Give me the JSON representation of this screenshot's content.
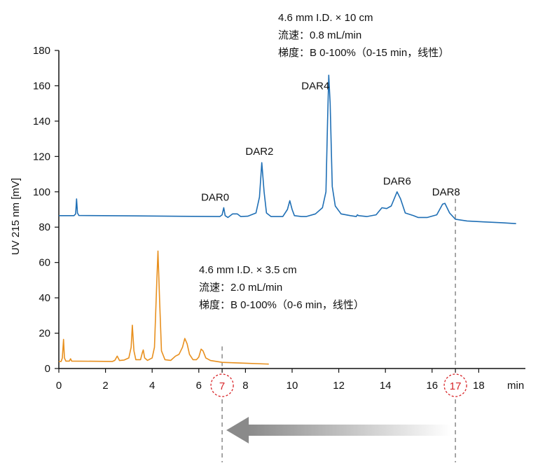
{
  "chart_data": {
    "type": "line",
    "xlabel": "min",
    "ylabel": "UV 215 nm [mV]",
    "xlim": [
      0,
      20
    ],
    "ylim": [
      0,
      180
    ],
    "x_ticks": [
      0,
      2,
      4,
      6,
      8,
      10,
      12,
      14,
      16,
      18
    ],
    "y_ticks": [
      0,
      20,
      40,
      60,
      80,
      100,
      120,
      140,
      160,
      180
    ],
    "highlighted_ticks": [
      {
        "value": 7,
        "label": "7"
      },
      {
        "value": 17,
        "label": "17"
      }
    ],
    "series": [
      {
        "color": "#1f6fb5",
        "annotation": [
          "4.6 mm I.D. × 10 cm",
          "流速：0.8 mL/min",
          "梯度：B 0-100%（0-15 min，线性）"
        ],
        "points": [
          [
            0,
            86.5
          ],
          [
            0.65,
            86.5
          ],
          [
            0.72,
            87.5
          ],
          [
            0.76,
            96
          ],
          [
            0.8,
            88
          ],
          [
            0.86,
            86.6
          ],
          [
            3,
            86.4
          ],
          [
            6.9,
            86
          ],
          [
            7.0,
            87
          ],
          [
            7.07,
            91
          ],
          [
            7.13,
            86.5
          ],
          [
            7.25,
            85.5
          ],
          [
            7.45,
            87.5
          ],
          [
            7.65,
            87.5
          ],
          [
            7.8,
            86
          ],
          [
            8.1,
            86.2
          ],
          [
            8.45,
            88
          ],
          [
            8.6,
            97
          ],
          [
            8.7,
            116.5
          ],
          [
            8.8,
            100
          ],
          [
            8.9,
            88
          ],
          [
            9.1,
            86
          ],
          [
            9.6,
            86
          ],
          [
            9.8,
            90
          ],
          [
            9.9,
            95
          ],
          [
            10.0,
            90
          ],
          [
            10.1,
            86.5
          ],
          [
            10.4,
            86
          ],
          [
            10.6,
            86
          ],
          [
            11.0,
            87.5
          ],
          [
            11.3,
            91
          ],
          [
            11.45,
            100
          ],
          [
            11.52,
            140
          ],
          [
            11.57,
            166
          ],
          [
            11.63,
            150
          ],
          [
            11.72,
            103
          ],
          [
            11.85,
            92
          ],
          [
            12.1,
            87.5
          ],
          [
            12.5,
            86.5
          ],
          [
            12.75,
            86
          ],
          [
            12.8,
            87
          ],
          [
            12.85,
            86.5
          ],
          [
            13.2,
            86
          ],
          [
            13.6,
            87
          ],
          [
            13.85,
            91
          ],
          [
            14.05,
            90.5
          ],
          [
            14.25,
            92
          ],
          [
            14.5,
            100
          ],
          [
            14.65,
            96
          ],
          [
            14.85,
            88
          ],
          [
            15.2,
            86.5
          ],
          [
            15.4,
            85.5
          ],
          [
            15.8,
            85.5
          ],
          [
            16.2,
            87
          ],
          [
            16.45,
            93
          ],
          [
            16.55,
            93.5
          ],
          [
            16.75,
            88
          ],
          [
            17.0,
            84.5
          ],
          [
            17.5,
            83.5
          ],
          [
            18.2,
            83
          ],
          [
            19.0,
            82.5
          ],
          [
            19.6,
            82
          ]
        ]
      },
      {
        "color": "#e8901f",
        "annotation": [
          "4.6 mm I.D. × 3.5 cm",
          "流速：2.0 mL/min",
          "梯度：B 0-100%（0-6 min，线性）"
        ],
        "points": [
          [
            0,
            4
          ],
          [
            0.1,
            4
          ],
          [
            0.15,
            6
          ],
          [
            0.2,
            16.5
          ],
          [
            0.24,
            6
          ],
          [
            0.3,
            4.2
          ],
          [
            0.45,
            4.2
          ],
          [
            0.5,
            5.5
          ],
          [
            0.55,
            4.2
          ],
          [
            2.3,
            4
          ],
          [
            2.4,
            4.6
          ],
          [
            2.5,
            7
          ],
          [
            2.6,
            4.5
          ],
          [
            2.8,
            4.8
          ],
          [
            3.0,
            6
          ],
          [
            3.1,
            12
          ],
          [
            3.15,
            24.5
          ],
          [
            3.22,
            10
          ],
          [
            3.3,
            5
          ],
          [
            3.5,
            5
          ],
          [
            3.58,
            9
          ],
          [
            3.62,
            10.5
          ],
          [
            3.68,
            6
          ],
          [
            3.8,
            4.6
          ],
          [
            4.0,
            6
          ],
          [
            4.1,
            12
          ],
          [
            4.2,
            50
          ],
          [
            4.25,
            66.5
          ],
          [
            4.32,
            38
          ],
          [
            4.4,
            10
          ],
          [
            4.55,
            5
          ],
          [
            4.8,
            4.6
          ],
          [
            5.0,
            7
          ],
          [
            5.15,
            8
          ],
          [
            5.3,
            12
          ],
          [
            5.4,
            17
          ],
          [
            5.5,
            14
          ],
          [
            5.6,
            8
          ],
          [
            5.75,
            5
          ],
          [
            5.9,
            5
          ],
          [
            6.0,
            6.5
          ],
          [
            6.1,
            11
          ],
          [
            6.18,
            10
          ],
          [
            6.3,
            6
          ],
          [
            6.5,
            4.5
          ],
          [
            7.0,
            3.5
          ],
          [
            8.0,
            3
          ],
          [
            9.0,
            2.5
          ]
        ]
      }
    ],
    "peak_labels": [
      {
        "text": "DAR0",
        "x": 6.7,
        "y": 95
      },
      {
        "text": "DAR2",
        "x": 8.6,
        "y": 121
      },
      {
        "text": "DAR4",
        "x": 11.0,
        "y": 158
      },
      {
        "text": "DAR6",
        "x": 14.5,
        "y": 104
      },
      {
        "text": "DAR8",
        "x": 16.6,
        "y": 98
      }
    ],
    "reference_lines": [
      7,
      17
    ],
    "arrow": {
      "from": 17,
      "to": 7
    }
  }
}
